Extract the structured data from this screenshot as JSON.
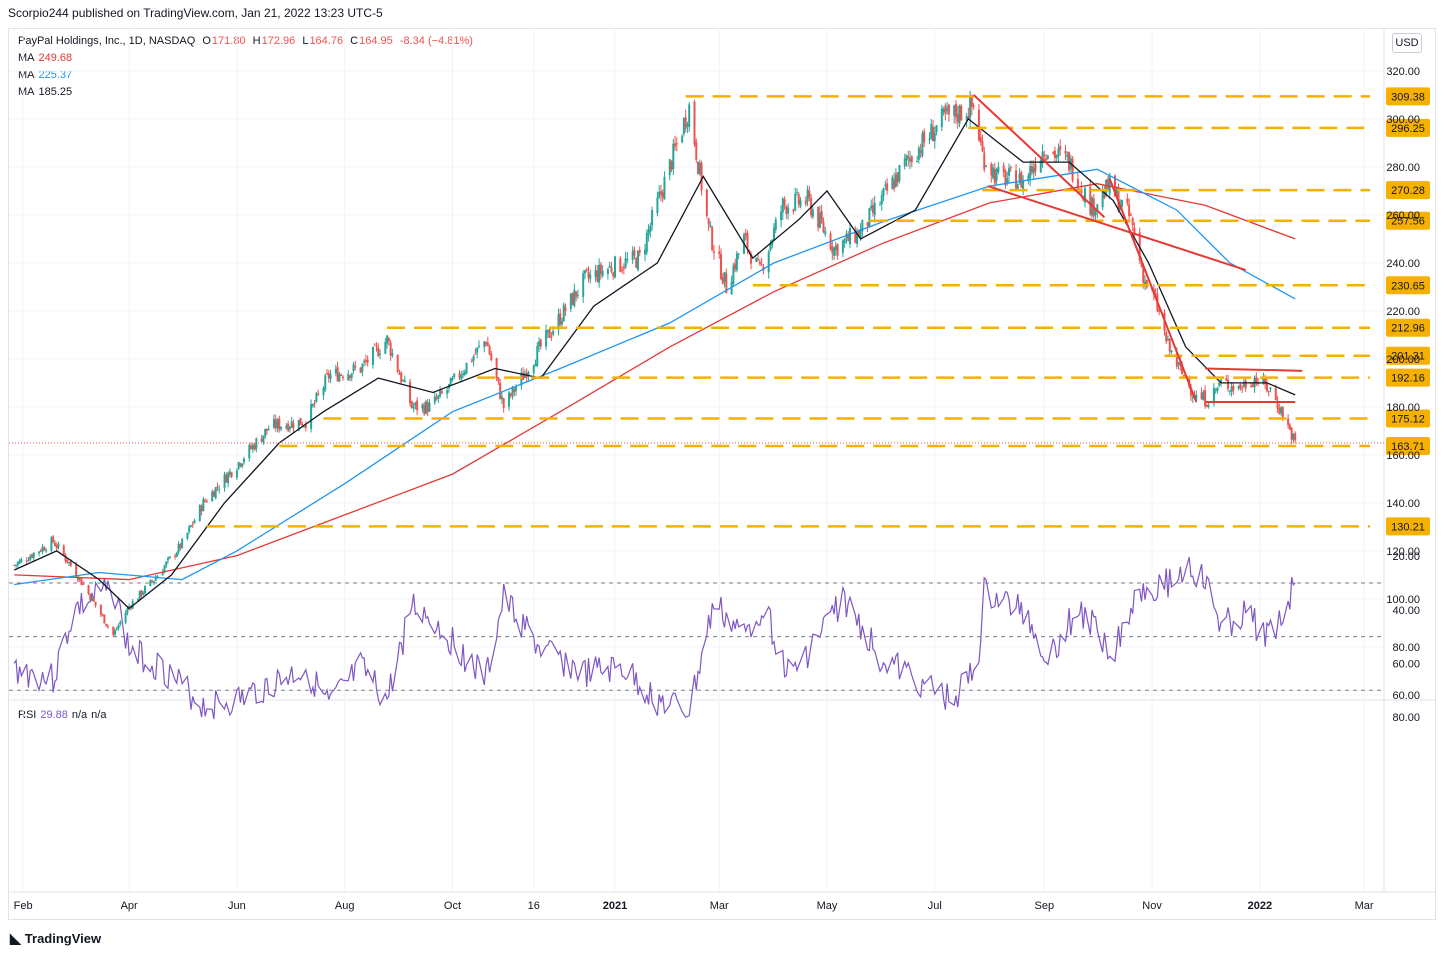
{
  "header": {
    "published": "Scorpio244 published on TradingView.com, Jan 21, 2022 13:23 UTC-5"
  },
  "legend": {
    "symbol": "PayPal Holdings, Inc., 1D, NASDAQ",
    "o_label": "O",
    "o": "171.80",
    "h_label": "H",
    "h": "172.96",
    "l_label": "L",
    "l": "164.76",
    "c_label": "C",
    "c": "164.95",
    "change": "-8.34 (−4.81%)",
    "ma_label": "MA",
    "ma1": "249.68",
    "ma2": "225.37",
    "ma3": "185.25",
    "rsi_label": "RSI",
    "rsi_value": "29.88",
    "rsi_na1": "n/a",
    "rsi_na2": "n/a"
  },
  "currency": "USD",
  "footer": {
    "brand": "TradingView"
  },
  "colors": {
    "up": "#26a69a",
    "down": "#ef5350",
    "ma_black": "#131722",
    "ma_blue": "#2196f3",
    "ma_red": "#e53935",
    "level": "#f5b000",
    "trend": "#e53935",
    "rsi": "#7e57c2",
    "rsi_band": "#ede7f6"
  },
  "chart_data": [
    {
      "type": "candlestick",
      "title": "PayPal Holdings, Inc., 1D, NASDAQ",
      "price_axis_ticks": [
        "320.00",
        "300.00",
        "280.00",
        "260.00",
        "240.00",
        "220.00",
        "200.00",
        "180.00",
        "160.00",
        "140.00",
        "120.00",
        "100.00",
        "80.00",
        "60.00"
      ],
      "time_axis_ticks": [
        "Feb",
        "Apr",
        "Jun",
        "Aug",
        "Oct",
        "16",
        "2021",
        "Mar",
        "May",
        "Jul",
        "Sep",
        "Nov",
        "2022",
        "Mar"
      ],
      "price_anchors": [
        {
          "date": "2020-01-27",
          "price": 114
        },
        {
          "date": "2020-02-18",
          "price": 124
        },
        {
          "date": "2020-03-01",
          "price": 112
        },
        {
          "date": "2020-03-23",
          "price": 85
        },
        {
          "date": "2020-04-01",
          "price": 97
        },
        {
          "date": "2020-04-15",
          "price": 108
        },
        {
          "date": "2020-05-01",
          "price": 123
        },
        {
          "date": "2020-05-13",
          "price": 140
        },
        {
          "date": "2020-06-01",
          "price": 156
        },
        {
          "date": "2020-06-20",
          "price": 172
        },
        {
          "date": "2020-07-10",
          "price": 174
        },
        {
          "date": "2020-07-23",
          "price": 193
        },
        {
          "date": "2020-08-10",
          "price": 196
        },
        {
          "date": "2020-08-25",
          "price": 208
        },
        {
          "date": "2020-09-08",
          "price": 180
        },
        {
          "date": "2020-09-18",
          "price": 180
        },
        {
          "date": "2020-09-28",
          "price": 187
        },
        {
          "date": "2020-10-20",
          "price": 208
        },
        {
          "date": "2020-10-30",
          "price": 180
        },
        {
          "date": "2020-11-20",
          "price": 205
        },
        {
          "date": "2020-12-15",
          "price": 233
        },
        {
          "date": "2020-12-29",
          "price": 238
        },
        {
          "date": "2021-01-15",
          "price": 242
        },
        {
          "date": "2021-02-12",
          "price": 305
        },
        {
          "date": "2021-02-23",
          "price": 254
        },
        {
          "date": "2021-03-05",
          "price": 230
        },
        {
          "date": "2021-03-15",
          "price": 250
        },
        {
          "date": "2021-03-24",
          "price": 236
        },
        {
          "date": "2021-04-06",
          "price": 264
        },
        {
          "date": "2021-04-20",
          "price": 266
        },
        {
          "date": "2021-05-05",
          "price": 246
        },
        {
          "date": "2021-05-20",
          "price": 253
        },
        {
          "date": "2021-06-15",
          "price": 282
        },
        {
          "date": "2021-07-06",
          "price": 300
        },
        {
          "date": "2021-07-23",
          "price": 305
        },
        {
          "date": "2021-07-28",
          "price": 285
        },
        {
          "date": "2021-08-05",
          "price": 276
        },
        {
          "date": "2021-08-20",
          "price": 274
        },
        {
          "date": "2021-09-01",
          "price": 288
        },
        {
          "date": "2021-09-15",
          "price": 282
        },
        {
          "date": "2021-09-28",
          "price": 263
        },
        {
          "date": "2021-10-08",
          "price": 272
        },
        {
          "date": "2021-10-20",
          "price": 258
        },
        {
          "date": "2021-10-28",
          "price": 232
        },
        {
          "date": "2021-11-03",
          "price": 224
        },
        {
          "date": "2021-11-10",
          "price": 205
        },
        {
          "date": "2021-11-17",
          "price": 195
        },
        {
          "date": "2021-11-26",
          "price": 184
        },
        {
          "date": "2021-12-03",
          "price": 183
        },
        {
          "date": "2021-12-10",
          "price": 190
        },
        {
          "date": "2021-12-20",
          "price": 188
        },
        {
          "date": "2021-12-29",
          "price": 192
        },
        {
          "date": "2022-01-07",
          "price": 187
        },
        {
          "date": "2022-01-14",
          "price": 177
        },
        {
          "date": "2022-01-21",
          "price": 164.95
        }
      ],
      "moving_averages": [
        {
          "name": "MA",
          "value": "249.68",
          "color": "#e53935",
          "points": [
            {
              "date": "2020-01-27",
              "price": 110
            },
            {
              "date": "2020-04-01",
              "price": 108
            },
            {
              "date": "2020-06-01",
              "price": 118
            },
            {
              "date": "2020-08-01",
              "price": 135
            },
            {
              "date": "2020-10-01",
              "price": 152
            },
            {
              "date": "2020-12-01",
              "price": 178
            },
            {
              "date": "2021-02-01",
              "price": 205
            },
            {
              "date": "2021-04-01",
              "price": 228
            },
            {
              "date": "2021-06-01",
              "price": 248
            },
            {
              "date": "2021-08-01",
              "price": 265
            },
            {
              "date": "2021-10-01",
              "price": 273
            },
            {
              "date": "2021-12-01",
              "price": 264
            },
            {
              "date": "2022-01-21",
              "price": 250
            }
          ]
        },
        {
          "name": "MA",
          "value": "225.37",
          "color": "#2196f3",
          "points": [
            {
              "date": "2020-01-27",
              "price": 106
            },
            {
              "date": "2020-03-15",
              "price": 111
            },
            {
              "date": "2020-05-01",
              "price": 108
            },
            {
              "date": "2020-06-01",
              "price": 120
            },
            {
              "date": "2020-08-01",
              "price": 148
            },
            {
              "date": "2020-10-01",
              "price": 178
            },
            {
              "date": "2020-12-01",
              "price": 196
            },
            {
              "date": "2021-02-01",
              "price": 215
            },
            {
              "date": "2021-04-01",
              "price": 240
            },
            {
              "date": "2021-06-01",
              "price": 257
            },
            {
              "date": "2021-08-01",
              "price": 272
            },
            {
              "date": "2021-10-01",
              "price": 279
            },
            {
              "date": "2021-11-15",
              "price": 262
            },
            {
              "date": "2021-12-15",
              "price": 240
            },
            {
              "date": "2022-01-21",
              "price": 225
            }
          ]
        },
        {
          "name": "MA",
          "value": "185.25",
          "color": "#131722",
          "points": [
            {
              "date": "2020-01-27",
              "price": 112
            },
            {
              "date": "2020-02-20",
              "price": 120
            },
            {
              "date": "2020-03-15",
              "price": 108
            },
            {
              "date": "2020-04-01",
              "price": 96
            },
            {
              "date": "2020-04-25",
              "price": 110
            },
            {
              "date": "2020-05-25",
              "price": 140
            },
            {
              "date": "2020-06-25",
              "price": 165
            },
            {
              "date": "2020-07-20",
              "price": 178
            },
            {
              "date": "2020-08-20",
              "price": 192
            },
            {
              "date": "2020-09-20",
              "price": 186
            },
            {
              "date": "2020-10-25",
              "price": 196
            },
            {
              "date": "2020-11-20",
              "price": 192
            },
            {
              "date": "2020-12-20",
              "price": 222
            },
            {
              "date": "2021-01-25",
              "price": 240
            },
            {
              "date": "2021-02-20",
              "price": 276
            },
            {
              "date": "2021-03-20",
              "price": 242
            },
            {
              "date": "2021-04-15",
              "price": 258
            },
            {
              "date": "2021-05-01",
              "price": 270
            },
            {
              "date": "2021-05-20",
              "price": 250
            },
            {
              "date": "2021-06-20",
              "price": 262
            },
            {
              "date": "2021-07-20",
              "price": 300
            },
            {
              "date": "2021-08-20",
              "price": 282
            },
            {
              "date": "2021-09-15",
              "price": 282
            },
            {
              "date": "2021-10-10",
              "price": 266
            },
            {
              "date": "2021-10-30",
              "price": 240
            },
            {
              "date": "2021-11-20",
              "price": 205
            },
            {
              "date": "2021-12-10",
              "price": 190
            },
            {
              "date": "2022-01-05",
              "price": 190
            },
            {
              "date": "2022-01-21",
              "price": 185
            }
          ]
        }
      ],
      "levels": [
        {
          "label": "309.38",
          "price": 309.38,
          "from": "2021-02-10"
        },
        {
          "label": "296.25",
          "price": 296.25,
          "from": "2021-07-20"
        },
        {
          "label": "270.28",
          "price": 270.28,
          "from": "2021-07-28"
        },
        {
          "label": "257.56",
          "price": 257.56,
          "from": "2021-05-25"
        },
        {
          "label": "230.65",
          "price": 230.65,
          "from": "2021-03-20"
        },
        {
          "label": "212.96",
          "price": 212.96,
          "from": "2020-08-25"
        },
        {
          "label": "201.31",
          "price": 201.31,
          "from": "2021-11-08"
        },
        {
          "label": "192.16",
          "price": 192.16,
          "from": "2020-10-15"
        },
        {
          "label": "175.12",
          "price": 175.12,
          "from": "2020-07-20"
        },
        {
          "label": "163.71",
          "price": 163.71,
          "from": "2020-06-25"
        },
        {
          "label": "130.21",
          "price": 130.21,
          "from": "2020-05-15"
        }
      ],
      "trendlines": [
        {
          "from": {
            "date": "2021-07-23",
            "price": 310
          },
          "to": {
            "date": "2021-10-05",
            "price": 259
          }
        },
        {
          "from": {
            "date": "2021-07-31",
            "price": 272
          },
          "to": {
            "date": "2021-12-24",
            "price": 237
          }
        },
        {
          "from": {
            "date": "2021-10-08",
            "price": 275
          },
          "to": {
            "date": "2021-11-26",
            "price": 182
          }
        },
        {
          "from": {
            "date": "2021-12-01",
            "price": 196
          },
          "to": {
            "date": "2022-01-25",
            "price": 195
          }
        },
        {
          "from": {
            "date": "2021-12-01",
            "price": 182
          },
          "to": {
            "date": "2022-01-21",
            "price": 182
          }
        }
      ],
      "last_price": 164.95,
      "ylim": [
        60,
        330
      ]
    },
    {
      "type": "line",
      "title": "RSI",
      "value": "29.88",
      "ticks": [
        "80.00",
        "60.00",
        "40.00",
        "20.00"
      ],
      "band": [
        30,
        70
      ],
      "midline": 50,
      "ylim": [
        15,
        85
      ],
      "anchors": [
        {
          "date": "2020-01-27",
          "v": 62
        },
        {
          "date": "2020-02-18",
          "v": 66
        },
        {
          "date": "2020-03-01",
          "v": 40
        },
        {
          "date": "2020-03-23",
          "v": 32
        },
        {
          "date": "2020-04-01",
          "v": 55
        },
        {
          "date": "2020-04-20",
          "v": 62
        },
        {
          "date": "2020-05-13",
          "v": 76
        },
        {
          "date": "2020-06-01",
          "v": 74
        },
        {
          "date": "2020-06-20",
          "v": 68
        },
        {
          "date": "2020-07-10",
          "v": 62
        },
        {
          "date": "2020-07-23",
          "v": 76
        },
        {
          "date": "2020-08-10",
          "v": 62
        },
        {
          "date": "2020-08-25",
          "v": 74
        },
        {
          "date": "2020-09-08",
          "v": 38
        },
        {
          "date": "2020-09-20",
          "v": 44
        },
        {
          "date": "2020-10-20",
          "v": 66
        },
        {
          "date": "2020-10-30",
          "v": 36
        },
        {
          "date": "2020-11-20",
          "v": 55
        },
        {
          "date": "2020-12-15",
          "v": 64
        },
        {
          "date": "2021-01-05",
          "v": 62
        },
        {
          "date": "2021-01-25",
          "v": 74
        },
        {
          "date": "2021-02-12",
          "v": 78
        },
        {
          "date": "2021-02-26",
          "v": 38
        },
        {
          "date": "2021-03-15",
          "v": 50
        },
        {
          "date": "2021-03-26",
          "v": 38
        },
        {
          "date": "2021-04-10",
          "v": 66
        },
        {
          "date": "2021-05-10",
          "v": 36
        },
        {
          "date": "2021-06-01",
          "v": 58
        },
        {
          "date": "2021-06-20",
          "v": 66
        },
        {
          "date": "2021-07-10",
          "v": 74
        },
        {
          "date": "2021-07-25",
          "v": 62
        },
        {
          "date": "2021-07-29",
          "v": 34
        },
        {
          "date": "2021-08-20",
          "v": 40
        },
        {
          "date": "2021-09-03",
          "v": 58
        },
        {
          "date": "2021-09-20",
          "v": 40
        },
        {
          "date": "2021-10-10",
          "v": 55
        },
        {
          "date": "2021-10-25",
          "v": 32
        },
        {
          "date": "2021-11-10",
          "v": 30
        },
        {
          "date": "2021-11-22",
          "v": 24
        },
        {
          "date": "2021-12-01",
          "v": 30
        },
        {
          "date": "2021-12-10",
          "v": 46
        },
        {
          "date": "2021-12-25",
          "v": 42
        },
        {
          "date": "2022-01-05",
          "v": 50
        },
        {
          "date": "2022-01-14",
          "v": 42
        },
        {
          "date": "2022-01-21",
          "v": 29.88
        }
      ]
    }
  ]
}
